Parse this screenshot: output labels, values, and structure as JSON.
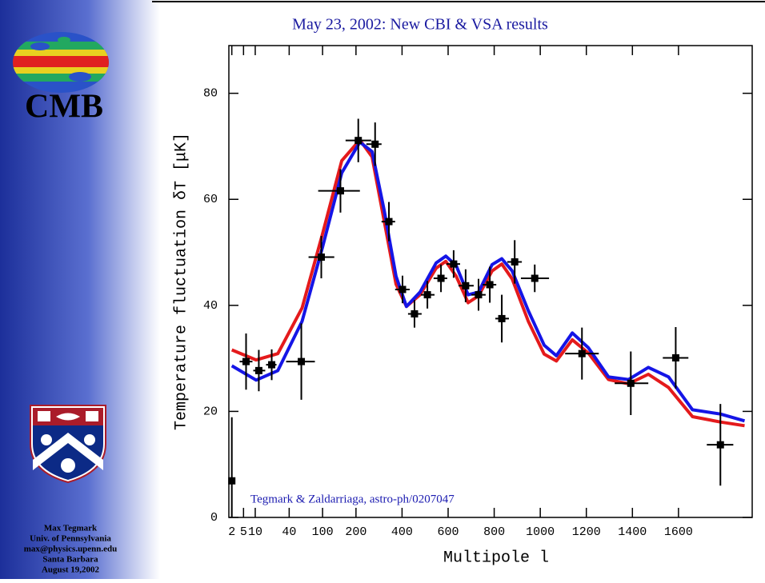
{
  "sidebar": {
    "logo_text": "CMB",
    "lines": [
      "Max Tegmark",
      "Univ. of Pennsylvania",
      "max@physics.upenn.edu",
      "Santa Barbara",
      "August 19,2002"
    ]
  },
  "chart_data": {
    "type": "line",
    "title": "May 23, 2002: New CBI & VSA results",
    "x_label": "Multipole l",
    "y_label": "Temperature fluctuation δT [μK]",
    "annotation": "Tegmark & Zaldarriaga, astro-ph/0207047",
    "xlim": [
      1.5,
      1920
    ],
    "ylim": [
      0,
      89
    ],
    "xticks": [
      2,
      5,
      10,
      40,
      100,
      200,
      400,
      600,
      800,
      1000,
      1200,
      1400,
      1600
    ],
    "yticks": [
      0,
      20,
      40,
      60,
      80
    ],
    "x": [
      2,
      10.5,
      27,
      59,
      100,
      152,
      217,
      270,
      322,
      374,
      419,
      478,
      548,
      590,
      635,
      687,
      732,
      791,
      833,
      878,
      948,
      1017,
      1070,
      1139,
      1209,
      1296,
      1383,
      1469,
      1557,
      1661,
      1782,
      1887
    ],
    "series": [
      {
        "name": "red model",
        "color": "#e41a1c",
        "values": [
          31.6,
          29.7,
          30.9,
          39.5,
          53.5,
          67.3,
          71.2,
          68,
          56,
          44,
          39.8,
          42,
          47,
          48.3,
          45.5,
          40.5,
          41.8,
          46.5,
          47.8,
          45,
          37,
          30.8,
          29.5,
          33.5,
          31,
          26,
          25.2,
          27,
          24.5,
          19,
          18,
          17.3
        ]
      },
      {
        "name": "blue model",
        "color": "#1515e6",
        "values": [
          28.6,
          25.9,
          27.7,
          37,
          51,
          65,
          70.8,
          69,
          58,
          45.5,
          39.8,
          42.5,
          48,
          49.3,
          47.5,
          42,
          42.5,
          47.7,
          48.8,
          46.5,
          39,
          32.5,
          30.5,
          34.8,
          32,
          26.5,
          26,
          28.3,
          26.5,
          20.3,
          19.5,
          18.2
        ]
      }
    ],
    "data_points": {
      "type": "errorbar",
      "color": "#000000",
      "x": [
        2,
        5.9,
        12,
        21.3,
        57.8,
        97,
        148,
        210,
        283,
        343,
        402,
        454,
        510,
        569,
        624,
        676,
        732,
        781,
        833,
        889,
        976,
        1181,
        1393,
        1588,
        1782
      ],
      "y": [
        6.9,
        29.4,
        27.7,
        28.8,
        29.4,
        49.1,
        61.6,
        71.1,
        70.4,
        55.8,
        43,
        38.4,
        42,
        45.1,
        47.8,
        43.7,
        42,
        43.9,
        37.5,
        48.2,
        45.1,
        30.9,
        25.3,
        30.1,
        13.7
      ],
      "x_lo": [
        null,
        3.8,
        9,
        16.8,
        36.2,
        70.5,
        90,
        164,
        245,
        311,
        370,
        426,
        482,
        537,
        593,
        645,
        701,
        750,
        805,
        857,
        916,
        1108,
        1323,
        1532,
        1723
      ],
      "x_hi": [
        null,
        8.6,
        16.2,
        25.7,
        83,
        130,
        217,
        266,
        311,
        370,
        433,
        485,
        541,
        596,
        652,
        711,
        763,
        809,
        864,
        920,
        1038,
        1254,
        1469,
        1643,
        1838
      ],
      "y_err": [
        12,
        5.3,
        3.9,
        2.9,
        7.2,
        4,
        4.1,
        4.1,
        4.1,
        3.7,
        2.6,
        2.6,
        2.6,
        2.6,
        2.6,
        3.1,
        3,
        3.4,
        4.5,
        4.1,
        2.6,
        4.9,
        6,
        5.8,
        7.7
      ]
    }
  }
}
